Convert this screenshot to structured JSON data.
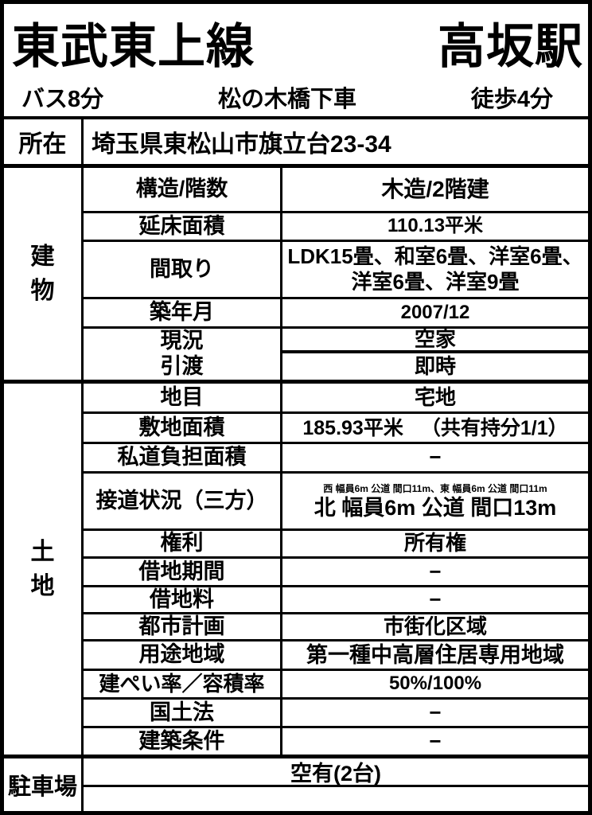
{
  "colors": {
    "ink": "#000000",
    "paper": "#ffffff"
  },
  "header": {
    "line_name": "東武東上線",
    "station": "高坂駅"
  },
  "access": {
    "bus": "バス8分",
    "stop": "松の木橋下車",
    "walk": "徒歩4分"
  },
  "location": {
    "label": "所在",
    "value": "埼玉県東松山市旗立台23-34"
  },
  "building": {
    "label": "建物",
    "rows": [
      {
        "label": "構造/階数",
        "value": "木造/2階建"
      },
      {
        "label": "延床面積",
        "value": "110.13平米"
      },
      {
        "label": "間取り",
        "lines": [
          "LDK15畳、和室6畳、洋室6畳、",
          "洋室6畳、洋室9畳"
        ]
      },
      {
        "label": "築年月",
        "value": "2007/12"
      },
      {
        "label": "現況",
        "value": "空家"
      },
      {
        "label": "引渡",
        "value": "即時"
      }
    ]
  },
  "land": {
    "label": "土地",
    "rows": [
      {
        "label": "地目",
        "value": "宅地"
      },
      {
        "label": "敷地面積",
        "value": "185.93平米",
        "note": "（共有持分1/1）"
      },
      {
        "label": "私道負担面積",
        "value": "−"
      },
      {
        "label": "接道状況（三方）",
        "note": "西 幅員6m 公道 間口11m、東 幅員6m 公道 間口11m",
        "value": "北 幅員6m 公道 間口13m"
      },
      {
        "label": "権利",
        "value": "所有権"
      },
      {
        "label": "借地期間",
        "value": "−"
      },
      {
        "label": "借地料",
        "value": "−"
      },
      {
        "label": "都市計画",
        "value": "市街化区域"
      },
      {
        "label": "用途地域",
        "value": "第一種中高層住居専用地域"
      },
      {
        "label": "建ぺい率／容積率",
        "value": "50%/100%"
      },
      {
        "label": "国土法",
        "value": "−"
      },
      {
        "label": "建築条件",
        "value": "−"
      }
    ]
  },
  "parking": {
    "label": "駐車場",
    "value": "空有(2台)"
  }
}
